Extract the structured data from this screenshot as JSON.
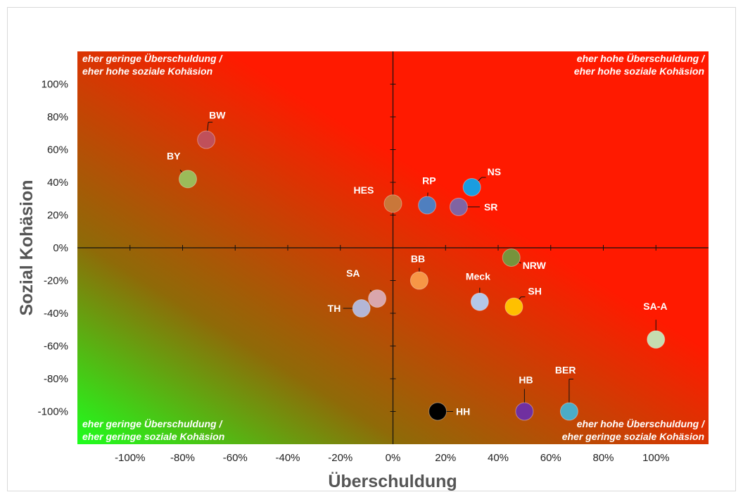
{
  "chart_data": {
    "type": "scatter",
    "xlabel": "Überschuldung",
    "ylabel": "Sozial Kohäsion",
    "xlim": [
      -120,
      120
    ],
    "ylim": [
      -120,
      120
    ],
    "x_ticks": [
      "-100%",
      "-80%",
      "-60%",
      "-40%",
      "-20%",
      "0%",
      "20%",
      "40%",
      "60%",
      "80%",
      "100%"
    ],
    "y_ticks": [
      "100%",
      "80%",
      "60%",
      "40%",
      "20%",
      "0%",
      "-20%",
      "-40%",
      "-60%",
      "-80%",
      "-100%"
    ],
    "background": "gradient from green (bottom-left) to red (top-right)",
    "grid": false,
    "quadrant_labels": {
      "top_left": [
        "eher geringe Überschuldung /",
        "eher hohe soziale Kohäsion"
      ],
      "top_right": [
        "eher hohe Überschuldung /",
        "eher hohe soziale Kohäsion"
      ],
      "bottom_left": [
        "eher geringe Überschuldung /",
        "eher geringe soziale Kohäsion"
      ],
      "bottom_right": [
        "eher hohe Überschuldung /",
        "eher geringe soziale Kohäsion"
      ]
    },
    "points": [
      {
        "label": "BW",
        "x": -71,
        "y": 66,
        "color": "#c0505a"
      },
      {
        "label": "BY",
        "x": -78,
        "y": 42,
        "color": "#9bbb59"
      },
      {
        "label": "HES",
        "x": 0,
        "y": 27,
        "color": "#c9773a"
      },
      {
        "label": "RP",
        "x": 13,
        "y": 26,
        "color": "#4f7fbf"
      },
      {
        "label": "NS",
        "x": 30,
        "y": 37,
        "color": "#1a9de0"
      },
      {
        "label": "SR",
        "x": 25,
        "y": 25,
        "color": "#8064a2"
      },
      {
        "label": "NRW",
        "x": 45,
        "y": -6,
        "color": "#77933c"
      },
      {
        "label": "BB",
        "x": 10,
        "y": -20,
        "color": "#f79646"
      },
      {
        "label": "SA",
        "x": -6,
        "y": -31,
        "color": "#d9a6ac"
      },
      {
        "label": "TH",
        "x": -12,
        "y": -37,
        "color": "#b3b6d6"
      },
      {
        "label": "Meck",
        "x": 33,
        "y": -33,
        "color": "#b4c7e7"
      },
      {
        "label": "SH",
        "x": 46,
        "y": -36,
        "color": "#ffc000"
      },
      {
        "label": "SA-A",
        "x": 100,
        "y": -56,
        "color": "#c5dcb0"
      },
      {
        "label": "HH",
        "x": 17,
        "y": -100,
        "color": "#000000"
      },
      {
        "label": "HB",
        "x": 50,
        "y": -100,
        "color": "#7030a0"
      },
      {
        "label": "BER",
        "x": 67,
        "y": -100,
        "color": "#4bacc6"
      }
    ]
  }
}
